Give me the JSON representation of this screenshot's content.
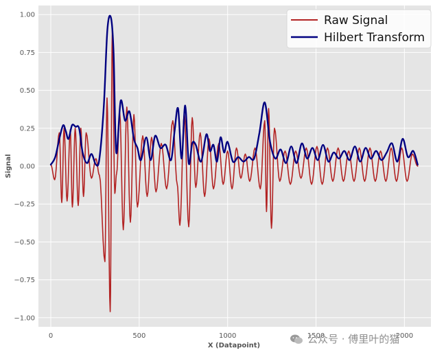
{
  "chart_data": {
    "type": "line",
    "xlabel": "X (Datapoint)",
    "ylabel": "Signal",
    "xlim": [
      -70,
      2150
    ],
    "ylim": [
      -1.06,
      1.06
    ],
    "xticks": [
      0,
      500,
      1000,
      1500,
      2000
    ],
    "yticks": [
      -1.0,
      -0.75,
      -0.5,
      -0.25,
      0.0,
      0.25,
      0.5,
      0.75,
      1.0
    ],
    "ytick_labels": [
      "−1.00",
      "−0.75",
      "−0.50",
      "−0.25",
      "0.00",
      "0.25",
      "0.50",
      "0.75",
      "1.00"
    ],
    "grid": true,
    "legend_position": "top-right",
    "series": [
      {
        "name": "Raw Signal",
        "color": "#b22222",
        "style": "oscillation",
        "x": [
          0,
          22,
          48,
          62,
          75,
          92,
          110,
          122,
          138,
          155,
          170,
          185,
          200,
          230,
          255,
          275,
          306,
          318,
          336,
          348,
          362,
          372,
          390,
          410,
          430,
          450,
          470,
          490,
          520,
          545,
          570,
          595,
          625,
          655,
          690,
          715,
          730,
          755,
          780,
          800,
          820,
          845,
          870,
          895,
          920,
          950,
          975,
          1000,
          1025,
          1050,
          1075,
          1100,
          1125,
          1155,
          1185,
          1210,
          1220,
          1232,
          1248,
          1265,
          1295,
          1325,
          1355,
          1385,
          1415,
          1445,
          1475,
          1505,
          1535,
          1565,
          1595,
          1625,
          1655,
          1685,
          1715,
          1745,
          1775,
          1805,
          1835,
          1865,
          1895,
          1925,
          1955,
          1985,
          2015,
          2045,
          2075
        ],
        "y": [
          0.01,
          -0.09,
          0.22,
          -0.24,
          0.25,
          -0.23,
          0.24,
          -0.27,
          0.25,
          -0.26,
          0.25,
          -0.2,
          0.22,
          -0.08,
          0.05,
          -0.06,
          -0.63,
          0.45,
          -0.96,
          0.9,
          -0.18,
          -0.05,
          0.35,
          -0.42,
          0.39,
          -0.37,
          0.34,
          -0.27,
          0.2,
          -0.2,
          0.19,
          -0.17,
          0.15,
          -0.15,
          0.3,
          -0.12,
          -0.39,
          0.35,
          -0.4,
          0.32,
          -0.14,
          0.22,
          -0.2,
          0.18,
          -0.15,
          0.15,
          -0.12,
          0.1,
          -0.15,
          0.12,
          -0.08,
          0.08,
          -0.1,
          0.12,
          -0.15,
          0.3,
          -0.3,
          0.38,
          -0.41,
          0.25,
          -0.1,
          0.1,
          -0.12,
          0.1,
          -0.08,
          0.12,
          -0.12,
          0.13,
          -0.12,
          0.12,
          -0.1,
          0.12,
          -0.1,
          0.1,
          -0.1,
          0.12,
          -0.1,
          0.12,
          -0.1,
          0.1,
          -0.1,
          0.12,
          -0.1,
          0.12,
          -0.1,
          0.08,
          0.0
        ]
      },
      {
        "name": "Hilbert Transform",
        "color": "#000080",
        "style": "smooth",
        "x": [
          0,
          25,
          50,
          70,
          85,
          100,
          120,
          140,
          160,
          180,
          205,
          230,
          255,
          275,
          300,
          320,
          340,
          355,
          370,
          395,
          420,
          445,
          470,
          490,
          510,
          540,
          565,
          590,
          620,
          650,
          680,
          700,
          720,
          740,
          760,
          780,
          800,
          820,
          850,
          880,
          900,
          920,
          940,
          960,
          980,
          1000,
          1030,
          1060,
          1090,
          1120,
          1150,
          1180,
          1210,
          1240,
          1270,
          1300,
          1330,
          1360,
          1390,
          1420,
          1450,
          1480,
          1510,
          1540,
          1570,
          1600,
          1630,
          1660,
          1690,
          1720,
          1750,
          1780,
          1810,
          1840,
          1870,
          1900,
          1930,
          1960,
          1990,
          2020,
          2050,
          2075
        ],
        "y": [
          0.01,
          0.06,
          0.19,
          0.27,
          0.23,
          0.18,
          0.27,
          0.26,
          0.25,
          0.09,
          0.02,
          0.08,
          0.01,
          0.05,
          0.4,
          0.9,
          0.98,
          0.75,
          0.09,
          0.43,
          0.3,
          0.36,
          0.18,
          0.12,
          0.04,
          0.19,
          0.04,
          0.2,
          0.12,
          0.14,
          0.04,
          0.23,
          0.38,
          0.05,
          0.4,
          0.02,
          0.15,
          0.14,
          0.03,
          0.21,
          0.1,
          0.14,
          0.03,
          0.19,
          0.09,
          0.16,
          0.03,
          0.06,
          0.03,
          0.06,
          0.05,
          0.22,
          0.42,
          0.16,
          0.05,
          0.11,
          0.02,
          0.13,
          0.02,
          0.15,
          0.05,
          0.12,
          0.04,
          0.14,
          0.03,
          0.09,
          0.05,
          0.1,
          0.04,
          0.13,
          0.03,
          0.12,
          0.05,
          0.1,
          0.04,
          0.09,
          0.15,
          0.03,
          0.18,
          0.06,
          0.1,
          0.01
        ]
      }
    ]
  },
  "watermark": {
    "text": "公众号 · 傅里叶的猫"
  }
}
